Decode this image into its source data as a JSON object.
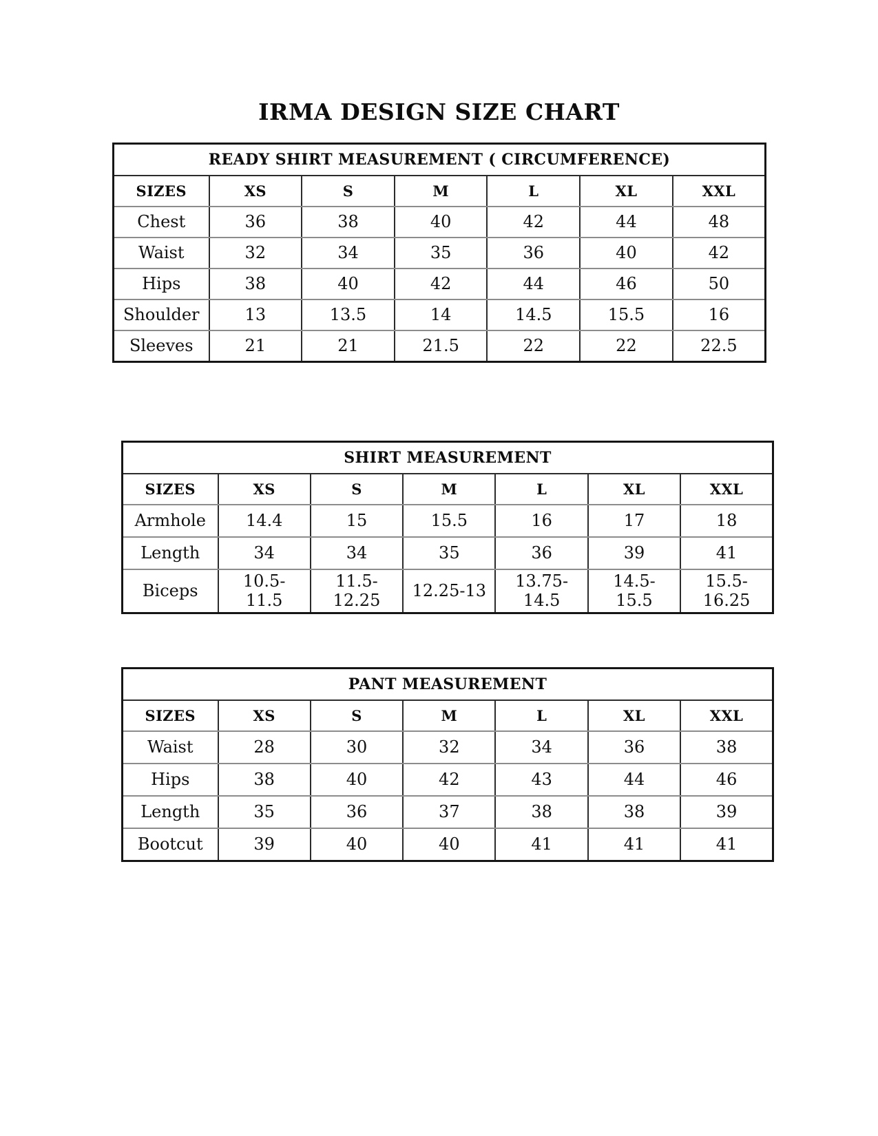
{
  "title": "IRMA DESIGN SIZE CHART",
  "tables": [
    {
      "header": "READY SHIRT MEASUREMENT ( CIRCUMFERENCE)",
      "columns": [
        "SIZES",
        "XS",
        "S",
        "M",
        "L",
        "XL",
        "XXL"
      ],
      "rows": [
        {
          "label": "Chest",
          "values": [
            "36",
            "38",
            "40",
            "42",
            "44",
            "48"
          ]
        },
        {
          "label": "Waist",
          "values": [
            "32",
            "34",
            "35",
            "36",
            "40",
            "42"
          ]
        },
        {
          "label": "Hips",
          "values": [
            "38",
            "40",
            "42",
            "44",
            "46",
            "50"
          ]
        },
        {
          "label": "Shoulder",
          "values": [
            "13",
            "13.5",
            "14",
            "14.5",
            "15.5",
            "16"
          ]
        },
        {
          "label": "Sleeves",
          "values": [
            "21",
            "21",
            "21.5",
            "22",
            "22",
            "22.5"
          ]
        }
      ]
    },
    {
      "header": "SHIRT MEASUREMENT",
      "columns": [
        "SIZES",
        "XS",
        "S",
        "M",
        "L",
        "XL",
        "XXL"
      ],
      "rows": [
        {
          "label": "Armhole",
          "values": [
            "14.4",
            "15",
            "15.5",
            "16",
            "17",
            "18"
          ]
        },
        {
          "label": "Length",
          "values": [
            "34",
            "34",
            "35",
            "36",
            "39",
            "41"
          ]
        },
        {
          "label": "Biceps",
          "values": [
            "10.5-\n11.5",
            "11.5-\n12.25",
            "12.25-13",
            "13.75-\n14.5",
            "14.5-\n15.5",
            "15.5-\n16.25"
          ]
        }
      ]
    },
    {
      "header": "PANT MEASUREMENT",
      "columns": [
        "SIZES",
        "XS",
        "S",
        "M",
        "L",
        "XL",
        "XXL"
      ],
      "rows": [
        {
          "label": "Waist",
          "values": [
            "28",
            "30",
            "32",
            "34",
            "36",
            "38"
          ]
        },
        {
          "label": "Hips",
          "values": [
            "38",
            "40",
            "42",
            "43",
            "44",
            "46"
          ]
        },
        {
          "label": "Length",
          "values": [
            "35",
            "36",
            "37",
            "38",
            "38",
            "39"
          ]
        },
        {
          "label": "Bootcut",
          "values": [
            "39",
            "40",
            "40",
            "41",
            "41",
            "41"
          ]
        }
      ]
    }
  ]
}
